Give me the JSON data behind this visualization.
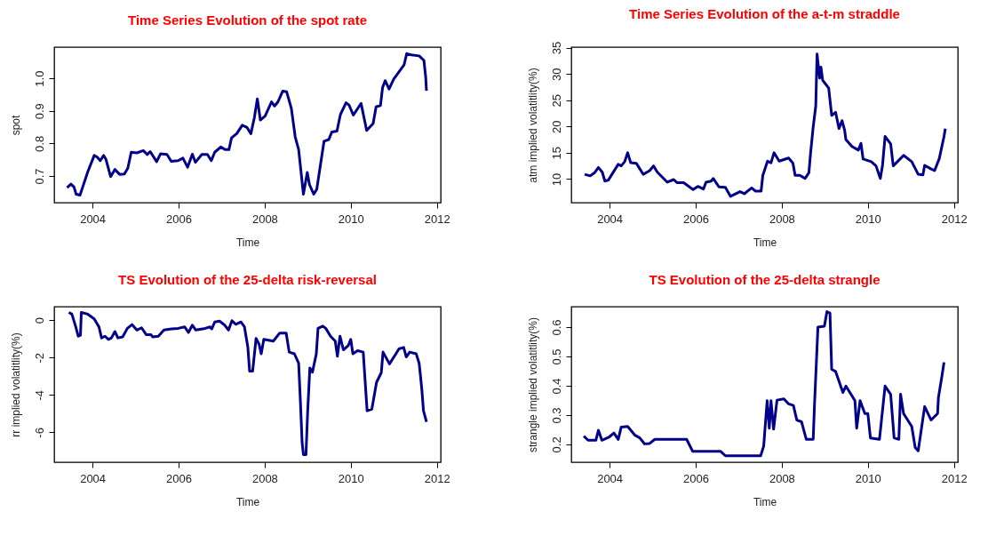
{
  "chart_data": [
    {
      "type": "line",
      "title": "Time Series  Evolution of the spot rate",
      "xlabel": "Time",
      "ylabel": "spot",
      "xlim": [
        2003.11,
        2012.09
      ],
      "xticks": [
        2004,
        2006,
        2008,
        2010,
        2012
      ],
      "ylim": [
        0.618,
        1.096
      ],
      "yticks": [
        0.7,
        0.8,
        0.9,
        {
          "value": 1.0,
          "label": "1.0"
        }
      ],
      "marker": "none",
      "line_style": "solid",
      "x": [
        2003.41,
        2003.5,
        2003.57,
        2003.62,
        2003.71,
        2003.79,
        2003.89,
        2004.04,
        2004.11,
        2004.18,
        2004.26,
        2004.31,
        2004.42,
        2004.52,
        2004.63,
        2004.74,
        2004.82,
        2004.9,
        2005.03,
        2005.18,
        2005.27,
        2005.34,
        2005.49,
        2005.58,
        2005.73,
        2005.83,
        2005.99,
        2006.1,
        2006.21,
        2006.32,
        2006.39,
        2006.54,
        2006.67,
        2006.76,
        2006.84,
        2006.98,
        2007.08,
        2007.17,
        2007.23,
        2007.35,
        2007.48,
        2007.59,
        2007.68,
        2007.76,
        2007.83,
        2007.9,
        2008.01,
        2008.16,
        2008.23,
        2008.31,
        2008.42,
        2008.51,
        2008.62,
        2008.71,
        2008.79,
        2008.9,
        2008.99,
        2009.04,
        2009.14,
        2009.21,
        2009.38,
        2009.49,
        2009.56,
        2009.68,
        2009.76,
        2009.89,
        2009.96,
        2010.06,
        2010.24,
        2010.37,
        2010.52,
        2010.59,
        2010.69,
        2010.74,
        2010.8,
        2010.89,
        2011.0,
        2011.24,
        2011.3,
        2011.41,
        2011.59,
        2011.7,
        2011.74,
        2011.76
      ],
      "series": [
        {
          "color": "#00008b",
          "values": [
            0.664,
            0.675,
            0.666,
            0.644,
            0.641,
            0.673,
            0.713,
            0.763,
            0.758,
            0.747,
            0.763,
            0.752,
            0.698,
            0.72,
            0.705,
            0.706,
            0.724,
            0.773,
            0.771,
            0.778,
            0.766,
            0.775,
            0.744,
            0.768,
            0.766,
            0.745,
            0.747,
            0.755,
            0.727,
            0.767,
            0.742,
            0.766,
            0.766,
            0.747,
            0.773,
            0.789,
            0.781,
            0.781,
            0.817,
            0.83,
            0.856,
            0.849,
            0.83,
            0.879,
            0.937,
            0.872,
            0.884,
            0.928,
            0.915,
            0.928,
            0.961,
            0.959,
            0.908,
            0.82,
            0.781,
            0.644,
            0.711,
            0.674,
            0.644,
            0.659,
            0.807,
            0.812,
            0.835,
            0.838,
            0.889,
            0.925,
            0.918,
            0.887,
            0.923,
            0.84,
            0.861,
            0.913,
            0.916,
            0.972,
            0.993,
            0.967,
            0.998,
            1.042,
            1.076,
            1.072,
            1.069,
            1.055,
            1.006,
            0.962
          ]
        }
      ]
    },
    {
      "type": "line",
      "title": "Time Series Evolution of the a-t-m straddle",
      "xlabel": "Time",
      "ylabel": "atm implied volatitlity(%)",
      "xlim": [
        2003.11,
        2012.09
      ],
      "xticks": [
        2004,
        2006,
        2008,
        2010,
        2012
      ],
      "ylim": [
        5.5,
        35.1
      ],
      "yticks": [
        10,
        15,
        20,
        25,
        30,
        35
      ],
      "marker": "none",
      "line_style": "solid",
      "x": [
        2003.42,
        2003.55,
        2003.65,
        2003.74,
        2003.83,
        2003.89,
        2003.97,
        2004.2,
        2004.27,
        2004.35,
        2004.42,
        2004.49,
        2004.62,
        2004.78,
        2004.93,
        2005.02,
        2005.11,
        2005.34,
        2005.49,
        2005.57,
        2005.72,
        2005.94,
        2006.05,
        2006.18,
        2006.24,
        2006.36,
        2006.41,
        2006.54,
        2006.69,
        2006.81,
        2007.03,
        2007.13,
        2007.3,
        2007.39,
        2007.52,
        2007.56,
        2007.67,
        2007.75,
        2007.82,
        2007.94,
        2008.16,
        2008.26,
        2008.31,
        2008.42,
        2008.54,
        2008.63,
        2008.67,
        2008.73,
        2008.79,
        2008.82,
        2008.88,
        2008.91,
        2008.95,
        2009.09,
        2009.16,
        2009.25,
        2009.33,
        2009.4,
        2009.46,
        2009.49,
        2009.63,
        2009.78,
        2009.84,
        2009.89,
        2010.08,
        2010.19,
        2010.29,
        2010.34,
        2010.4,
        2010.53,
        2010.59,
        2010.83,
        2011.02,
        2011.17,
        2011.28,
        2011.32,
        2011.47,
        2011.55,
        2011.66,
        2011.77,
        2011.8
      ],
      "series": [
        {
          "color": "#00008b",
          "values": [
            10.9,
            10.6,
            11.2,
            12.2,
            11.3,
            9.6,
            9.8,
            12.8,
            12.5,
            13.3,
            15.0,
            13.1,
            13.0,
            10.9,
            11.6,
            12.5,
            11.3,
            9.4,
            9.9,
            9.3,
            9.3,
            8.0,
            8.6,
            8.1,
            9.4,
            9.6,
            10.1,
            8.5,
            8.4,
            6.7,
            7.6,
            7.2,
            8.3,
            7.7,
            7.7,
            10.7,
            13.4,
            13.1,
            15.0,
            13.4,
            14.0,
            13.0,
            10.7,
            10.7,
            10.1,
            11.2,
            15.0,
            19.9,
            23.9,
            33.8,
            29.2,
            31.3,
            28.8,
            27.3,
            22.1,
            22.7,
            19.6,
            21.1,
            19.3,
            17.5,
            16.2,
            15.5,
            16.8,
            13.8,
            13.3,
            12.5,
            10.1,
            12.5,
            18.1,
            16.7,
            12.5,
            14.5,
            13.3,
            10.9,
            10.8,
            12.6,
            11.9,
            11.6,
            13.9,
            18.1,
            19.6
          ]
        }
      ]
    },
    {
      "type": "line",
      "title": "TS Evolution of the 25-delta risk-reversal",
      "xlabel": "Time",
      "ylabel": "rr implied volatitlity(%)",
      "xlim": [
        2003.11,
        2012.09
      ],
      "xticks": [
        2004,
        2006,
        2008,
        2010,
        2012
      ],
      "ylim": [
        -7.6,
        0.72
      ],
      "yticks": [
        -6,
        -4,
        -2,
        0
      ],
      "marker": "none",
      "line_style": "solid",
      "x": [
        2003.45,
        2003.52,
        2003.6,
        2003.67,
        2003.72,
        2003.74,
        2003.89,
        2004.04,
        2004.15,
        2004.21,
        2004.29,
        2004.37,
        2004.44,
        2004.52,
        2004.59,
        2004.7,
        2004.81,
        2004.92,
        2005.03,
        2005.14,
        2005.25,
        2005.36,
        2005.4,
        2005.53,
        2005.66,
        2005.84,
        2005.99,
        2006.14,
        2006.23,
        2006.32,
        2006.4,
        2006.62,
        2006.73,
        2006.77,
        2006.84,
        2006.95,
        2007.06,
        2007.16,
        2007.24,
        2007.33,
        2007.45,
        2007.53,
        2007.61,
        2007.65,
        2007.72,
        2007.8,
        2007.87,
        2007.92,
        2007.98,
        2008.2,
        2008.35,
        2008.5,
        2008.57,
        2008.69,
        2008.79,
        2008.83,
        2008.87,
        2008.9,
        2008.96,
        2009.0,
        2009.05,
        2009.11,
        2009.2,
        2009.24,
        2009.35,
        2009.42,
        2009.53,
        2009.64,
        2009.69,
        2009.75,
        2009.83,
        2009.94,
        2010.0,
        2010.05,
        2010.16,
        2010.29,
        2010.38,
        2010.49,
        2010.6,
        2010.71,
        2010.75,
        2010.9,
        2011.05,
        2011.12,
        2011.23,
        2011.29,
        2011.37,
        2011.52,
        2011.59,
        2011.65,
        2011.69,
        2011.76
      ],
      "series": [
        {
          "color": "#00008b",
          "values": [
            0.41,
            0.32,
            -0.27,
            -0.86,
            -0.81,
            0.41,
            0.32,
            0.07,
            -0.36,
            -0.95,
            -0.86,
            -1.03,
            -0.95,
            -0.61,
            -0.95,
            -0.9,
            -0.44,
            -0.24,
            -0.53,
            -0.41,
            -0.78,
            -0.78,
            -0.9,
            -0.86,
            -0.53,
            -0.47,
            -0.44,
            -0.36,
            -0.66,
            -0.27,
            -0.53,
            -0.44,
            -0.36,
            -0.47,
            -0.1,
            -0.05,
            -0.24,
            -0.53,
            -0.03,
            -0.22,
            -0.1,
            -0.36,
            -1.46,
            -2.73,
            -2.73,
            -0.98,
            -1.29,
            -1.8,
            -1.03,
            -1.12,
            -0.69,
            -0.69,
            -1.71,
            -1.8,
            -2.31,
            -4.34,
            -6.54,
            -7.19,
            -7.19,
            -4.85,
            -2.56,
            -2.78,
            -1.8,
            -0.44,
            -0.32,
            -0.44,
            -0.86,
            -1.12,
            -1.93,
            -0.86,
            -1.59,
            -1.37,
            -1.03,
            -1.8,
            -1.63,
            -1.71,
            -4.85,
            -4.76,
            -3.32,
            -2.81,
            -1.71,
            -2.34,
            -1.8,
            -1.54,
            -1.46,
            -1.97,
            -1.71,
            -1.8,
            -2.31,
            -3.66,
            -4.85,
            -5.44
          ]
        }
      ]
    },
    {
      "type": "line",
      "title": "TS Evolution of the  25-delta strangle",
      "xlabel": "Time",
      "ylabel": "strangle implied volatitlity(%)",
      "xlim": [
        2003.11,
        2012.09
      ],
      "xticks": [
        2004,
        2006,
        2008,
        2010,
        2012
      ],
      "ylim": [
        0.139,
        0.67
      ],
      "yticks": [
        0.2,
        0.3,
        0.4,
        0.5,
        0.6
      ],
      "marker": "none",
      "line_style": "solid",
      "x": [
        2003.4,
        2003.5,
        2003.68,
        2003.74,
        2003.82,
        2003.98,
        2004.1,
        2004.2,
        2004.27,
        2004.42,
        2004.59,
        2004.7,
        2004.81,
        2004.93,
        2005.05,
        2005.26,
        2005.79,
        2005.93,
        2006.58,
        2006.69,
        2007.51,
        2007.58,
        2007.66,
        2007.71,
        2007.75,
        2007.81,
        2007.89,
        2008.05,
        2008.16,
        2008.27,
        2008.35,
        2008.46,
        2008.57,
        2008.73,
        2008.76,
        2008.84,
        2008.99,
        2009.05,
        2009.12,
        2009.16,
        2009.25,
        2009.42,
        2009.49,
        2009.7,
        2009.74,
        2009.82,
        2009.93,
        2010.0,
        2010.06,
        2010.27,
        2010.4,
        2010.53,
        2010.61,
        2010.72,
        2010.76,
        2010.83,
        2011.02,
        2011.1,
        2011.17,
        2011.32,
        2011.47,
        2011.62,
        2011.64,
        2011.72,
        2011.77
      ],
      "series": [
        {
          "color": "#00008b",
          "values": [
            0.228,
            0.214,
            0.214,
            0.248,
            0.214,
            0.224,
            0.239,
            0.217,
            0.259,
            0.261,
            0.231,
            0.222,
            0.202,
            0.203,
            0.217,
            0.217,
            0.217,
            0.176,
            0.176,
            0.161,
            0.161,
            0.194,
            0.349,
            0.255,
            0.349,
            0.252,
            0.351,
            0.355,
            0.338,
            0.333,
            0.283,
            0.277,
            0.217,
            0.217,
            0.333,
            0.6,
            0.603,
            0.653,
            0.648,
            0.456,
            0.449,
            0.377,
            0.399,
            0.349,
            0.255,
            0.349,
            0.305,
            0.305,
            0.222,
            0.217,
            0.399,
            0.371,
            0.222,
            0.217,
            0.371,
            0.305,
            0.261,
            0.189,
            0.178,
            0.329,
            0.283,
            0.305,
            0.36,
            0.432,
            0.48
          ]
        }
      ]
    }
  ]
}
